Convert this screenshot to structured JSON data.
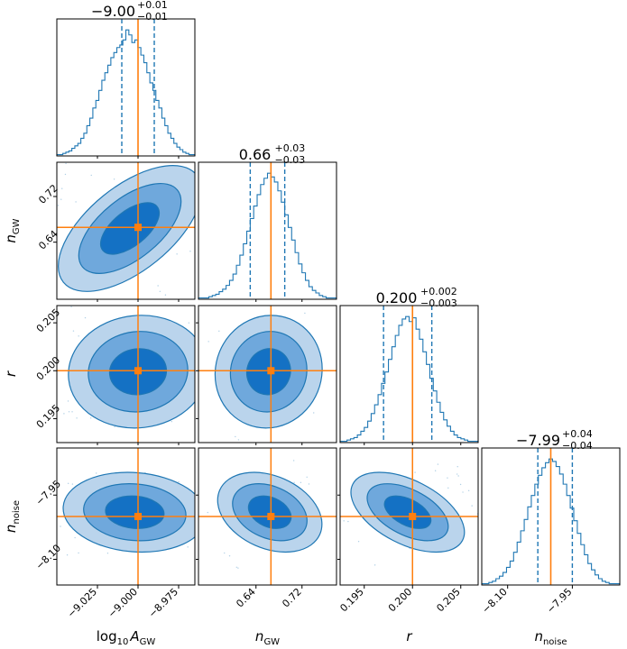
{
  "chart_data": {
    "type": "corner",
    "parameters": [
      {
        "key": "logA",
        "label_main": "log",
        "label_sub1": "10",
        "label_var": "A",
        "label_sub2": "GW",
        "truth": -9.0,
        "median": -9.0,
        "q_lo": -9.01,
        "q_hi": -8.99,
        "range": [
          -9.05,
          -8.965
        ],
        "ticks": [
          -9.025,
          -9.0,
          -8.975
        ],
        "tick_labels": [
          "−9.025",
          "−9.000",
          "−8.975"
        ],
        "title_value": "−9.00",
        "title_plus": "+0.01",
        "title_minus": "−0.01",
        "hist_values": [
          1,
          1,
          2,
          3,
          4,
          6,
          8,
          10,
          14,
          18,
          24,
          30,
          38,
          44,
          52,
          60,
          66,
          72,
          78,
          82,
          86,
          88,
          92,
          100,
          96,
          90,
          92,
          86,
          80,
          74,
          66,
          58,
          52,
          44,
          38,
          30,
          24,
          18,
          14,
          10,
          7,
          5,
          3,
          2,
          1,
          1
        ]
      },
      {
        "key": "nGW",
        "label_main": "n",
        "label_sub": "GW",
        "truth": 0.666,
        "median": 0.66,
        "q_lo": 0.63,
        "q_hi": 0.69,
        "range": [
          0.54,
          0.78
        ],
        "ticks": [
          0.64,
          0.72
        ],
        "tick_labels": [
          "0.64",
          "0.72"
        ],
        "title_value": "0.66",
        "title_plus": "+0.03",
        "title_minus": "−0.03",
        "hist_values": [
          1,
          1,
          1,
          2,
          3,
          4,
          6,
          8,
          11,
          15,
          20,
          27,
          35,
          44,
          54,
          64,
          74,
          83,
          91,
          96,
          100,
          97,
          93,
          86,
          77,
          67,
          57,
          47,
          37,
          28,
          21,
          15,
          10,
          7,
          5,
          3,
          2,
          1,
          1,
          1
        ]
      },
      {
        "key": "r",
        "label_main": "r",
        "truth": 0.2,
        "median": 0.2,
        "q_lo": 0.197,
        "q_hi": 0.202,
        "range": [
          0.1925,
          0.2068
        ],
        "ticks": [
          0.195,
          0.2,
          0.205
        ],
        "tick_labels": [
          "0.195",
          "0.200",
          "0.205"
        ],
        "title_value": "0.200",
        "title_plus": "+0.002",
        "title_minus": "−0.003",
        "hist_values": [
          1,
          1,
          2,
          3,
          4,
          6,
          9,
          12,
          17,
          23,
          30,
          38,
          47,
          56,
          66,
          76,
          85,
          93,
          98,
          100,
          96,
          99,
          90,
          82,
          72,
          62,
          51,
          41,
          32,
          24,
          18,
          13,
          9,
          6,
          4,
          3,
          2,
          1,
          1,
          1
        ]
      },
      {
        "key": "nnoise",
        "label_main": "n",
        "label_sub": "noise",
        "truth": -8.0,
        "median": -7.99,
        "q_lo": -8.03,
        "q_hi": -7.95,
        "range": [
          -8.16,
          -7.84
        ],
        "ticks": [
          -8.1,
          -7.95
        ],
        "tick_labels": [
          "−8.10",
          "−7.95"
        ],
        "title_value": "−7.99",
        "title_plus": "+0.04",
        "title_minus": "−0.04",
        "hist_values": [
          1,
          1,
          2,
          3,
          5,
          7,
          10,
          14,
          19,
          26,
          34,
          43,
          52,
          62,
          71,
          80,
          87,
          93,
          97,
          100,
          98,
          94,
          88,
          80,
          71,
          61,
          51,
          41,
          32,
          24,
          17,
          12,
          8,
          5,
          3,
          2,
          1,
          1,
          1
        ]
      }
    ],
    "truth_color": "#ff7f0e",
    "contour_color": "#1f77b4",
    "fill_levels": [
      "#bad4ec",
      "#6fa8dc",
      "#1471c4"
    ],
    "contours": {
      "1_0": {
        "center": [
          -9.005,
          0.664
        ],
        "sd": [
          0.018,
          0.045
        ],
        "rho": 0.6
      },
      "2_0": {
        "center": [
          -9.0,
          0.1999
        ],
        "sd": [
          0.0175,
          0.0024
        ],
        "rho": 0.05
      },
      "2_1": {
        "center": [
          0.662,
          0.1999
        ],
        "sd": [
          0.038,
          0.0024
        ],
        "rho": 0.05
      },
      "3_0": {
        "center": [
          -9.002,
          -7.99
        ],
        "sd": [
          0.018,
          0.038
        ],
        "rho": -0.1
      },
      "3_1": {
        "center": [
          0.664,
          -7.99
        ],
        "sd": [
          0.037,
          0.038
        ],
        "rho": -0.3
      },
      "3_2": {
        "center": [
          0.1995,
          -7.99
        ],
        "sd": [
          0.0024,
          0.038
        ],
        "rho": -0.5
      }
    }
  }
}
